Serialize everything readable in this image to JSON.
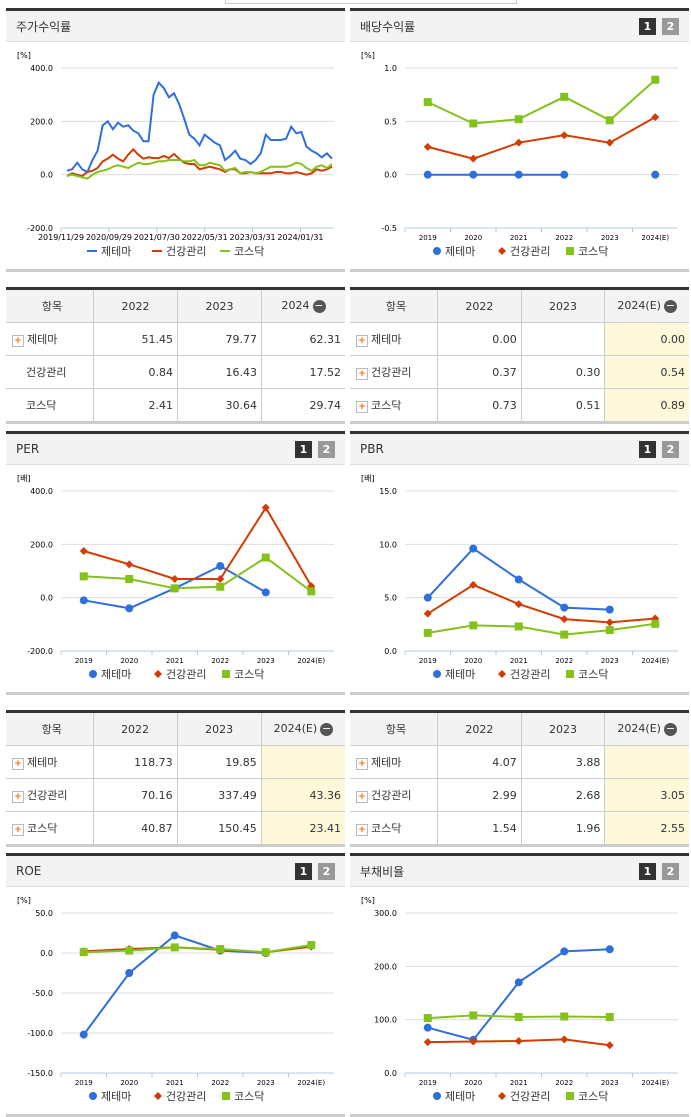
{
  "legend": [
    "제테마",
    "건강관리",
    "코스닥"
  ],
  "colors": {
    "s0": "#2f6fdc",
    "s1": "#d23c05",
    "s2": "#84c11a"
  },
  "pager": [
    "1",
    "2"
  ],
  "charts": [
    {
      "id": "stock",
      "title": "주가수익률",
      "unit": "[%]",
      "pager": false,
      "type": "line",
      "ylim": [
        -200,
        400
      ],
      "yticks": [
        "400.0",
        "200.0",
        "0.0",
        "-200.0"
      ],
      "yvals": [
        400,
        200,
        0,
        -200
      ],
      "xticks": [
        "2019/11/29",
        "2020/09/29",
        "2021/07/30",
        "2022/05/31",
        "2023/03/31",
        "2024/01/31"
      ],
      "series": [
        {
          "name": "제테마",
          "values": [
            15,
            20,
            45,
            20,
            10,
            55,
            90,
            185,
            200,
            170,
            195,
            180,
            185,
            165,
            155,
            125,
            125,
            300,
            345,
            325,
            290,
            305,
            265,
            210,
            150,
            135,
            110,
            150,
            135,
            120,
            110,
            55,
            70,
            90,
            60,
            55,
            40,
            55,
            80,
            150,
            130,
            130,
            130,
            135,
            180,
            155,
            160,
            105,
            90,
            80,
            65,
            80,
            60
          ]
        },
        {
          "name": "건강관리",
          "values": [
            -5,
            5,
            0,
            -5,
            10,
            15,
            25,
            50,
            60,
            75,
            60,
            50,
            75,
            95,
            75,
            60,
            65,
            62,
            62,
            70,
            62,
            78,
            60,
            45,
            40,
            40,
            20,
            25,
            30,
            25,
            20,
            10,
            20,
            20,
            5,
            5,
            10,
            5,
            5,
            5,
            5,
            10,
            10,
            5,
            5,
            10,
            5,
            0,
            5,
            20,
            15,
            20,
            30
          ]
        },
        {
          "name": "코스닥",
          "values": [
            -5,
            0,
            -5,
            -10,
            -15,
            0,
            10,
            15,
            20,
            30,
            35,
            30,
            25,
            35,
            45,
            40,
            40,
            45,
            50,
            50,
            55,
            55,
            55,
            50,
            50,
            55,
            35,
            35,
            45,
            40,
            35,
            15,
            20,
            25,
            5,
            10,
            10,
            5,
            10,
            20,
            30,
            30,
            30,
            30,
            35,
            45,
            40,
            25,
            15,
            30,
            35,
            25,
            40
          ]
        }
      ]
    },
    {
      "id": "div",
      "title": "배당수익률",
      "unit": "[%]",
      "pager": true,
      "type": "marker",
      "ylim": [
        -0.5,
        1.0
      ],
      "yticks": [
        "1.0",
        "0.5",
        "0.0",
        "-0.5"
      ],
      "yvals": [
        1,
        0.5,
        0,
        -0.5
      ],
      "xticks": [
        "2019",
        "2020",
        "2021",
        "2022",
        "2023",
        "2024(E)"
      ],
      "series": [
        {
          "name": "제테마",
          "values": [
            0,
            0,
            0,
            0,
            null,
            0
          ]
        },
        {
          "name": "건강관리",
          "values": [
            0.26,
            0.15,
            0.3,
            0.37,
            0.3,
            0.54
          ]
        },
        {
          "name": "코스닥",
          "values": [
            0.68,
            0.48,
            0.52,
            0.73,
            0.51,
            0.89
          ]
        }
      ]
    },
    {
      "id": "per",
      "title": "PER",
      "unit": "[배]",
      "pager": true,
      "type": "marker",
      "ylim": [
        -200,
        400
      ],
      "yticks": [
        "400.0",
        "200.0",
        "0.0",
        "-200.0"
      ],
      "yvals": [
        400,
        200,
        0,
        -200
      ],
      "xticks": [
        "2019",
        "2020",
        "2021",
        "2022",
        "2023",
        "2024(E)"
      ],
      "series": [
        {
          "name": "제테마",
          "values": [
            -10,
            -40,
            35,
            118.73,
            19.85,
            null
          ]
        },
        {
          "name": "건강관리",
          "values": [
            175,
            125,
            70,
            70.16,
            337.49,
            43.36
          ]
        },
        {
          "name": "코스닥",
          "values": [
            80,
            70,
            35,
            40.87,
            150.45,
            23.41
          ]
        }
      ]
    },
    {
      "id": "pbr",
      "title": "PBR",
      "unit": "[배]",
      "pager": true,
      "type": "marker",
      "ylim": [
        0,
        15
      ],
      "yticks": [
        "15.0",
        "10.0",
        "5.0",
        "0.0"
      ],
      "yvals": [
        15,
        10,
        5,
        0
      ],
      "xticks": [
        "2019",
        "2020",
        "2021",
        "2022",
        "2023",
        "2024(E)"
      ],
      "series": [
        {
          "name": "제테마",
          "values": [
            5.0,
            9.6,
            6.7,
            4.07,
            3.88,
            null
          ]
        },
        {
          "name": "건강관리",
          "values": [
            3.5,
            6.2,
            4.4,
            2.99,
            2.68,
            3.05
          ]
        },
        {
          "name": "코스닥",
          "values": [
            1.7,
            2.4,
            2.3,
            1.54,
            1.96,
            2.55
          ]
        }
      ]
    },
    {
      "id": "roe",
      "title": "ROE",
      "unit": "[%]",
      "pager": true,
      "type": "marker",
      "ylim": [
        -150,
        50
      ],
      "yticks": [
        "50.0",
        "0.0",
        "-50.0",
        "-100.0",
        "-150.0"
      ],
      "yvals": [
        50,
        0,
        -50,
        -100,
        -150
      ],
      "xticks": [
        "2019",
        "2020",
        "2021",
        "2022",
        "2023",
        "2024(E)"
      ],
      "series": [
        {
          "name": "제테마",
          "values": [
            -102,
            -25,
            22,
            3,
            0,
            null
          ]
        },
        {
          "name": "건강관리",
          "values": [
            2,
            5,
            7,
            4,
            1,
            8
          ]
        },
        {
          "name": "코스닥",
          "values": [
            1,
            3,
            7,
            5,
            1,
            10
          ]
        }
      ]
    },
    {
      "id": "debt",
      "title": "부채비율",
      "unit": "[%]",
      "pager": true,
      "type": "marker",
      "ylim": [
        0,
        300
      ],
      "yticks": [
        "300.0",
        "200.0",
        "100.0",
        "0.0"
      ],
      "yvals": [
        300,
        200,
        100,
        0
      ],
      "xticks": [
        "2019",
        "2020",
        "2021",
        "2022",
        "2023",
        "2024(E)"
      ],
      "series": [
        {
          "name": "제테마",
          "values": [
            85,
            62,
            170,
            228,
            232,
            null
          ]
        },
        {
          "name": "건강관리",
          "values": [
            58,
            59,
            60,
            63,
            52,
            null
          ]
        },
        {
          "name": "코스닥",
          "values": [
            103,
            108,
            105,
            106,
            105,
            null
          ]
        }
      ]
    }
  ],
  "tables": [
    {
      "header": [
        "항목",
        "2022",
        "2023",
        "2024"
      ],
      "rows": [
        [
          "제테마",
          "51.45",
          "79.77",
          "62.31"
        ],
        [
          "건강관리",
          "0.84",
          "16.43",
          "17.52"
        ],
        [
          "코스닥",
          "2.41",
          "30.64",
          "29.74"
        ]
      ],
      "plus": [
        true,
        false,
        false
      ],
      "hl": false
    },
    {
      "header": [
        "항목",
        "2022",
        "2023",
        "2024(E)"
      ],
      "rows": [
        [
          "제테마",
          "0.00",
          "",
          "0.00"
        ],
        [
          "건강관리",
          "0.37",
          "0.30",
          "0.54"
        ],
        [
          "코스닥",
          "0.73",
          "0.51",
          "0.89"
        ]
      ],
      "plus": [
        true,
        true,
        true
      ],
      "hl": true
    },
    {
      "header": [
        "항목",
        "2022",
        "2023",
        "2024(E)"
      ],
      "rows": [
        [
          "제테마",
          "118.73",
          "19.85",
          ""
        ],
        [
          "건강관리",
          "70.16",
          "337.49",
          "43.36"
        ],
        [
          "코스닥",
          "40.87",
          "150.45",
          "23.41"
        ]
      ],
      "plus": [
        true,
        true,
        true
      ],
      "hl": true
    },
    {
      "header": [
        "항목",
        "2022",
        "2023",
        "2024(E)"
      ],
      "rows": [
        [
          "제테마",
          "4.07",
          "3.88",
          ""
        ],
        [
          "건강관리",
          "2.99",
          "2.68",
          "3.05"
        ],
        [
          "코스닥",
          "1.54",
          "1.96",
          "2.55"
        ]
      ],
      "plus": [
        true,
        true,
        true
      ],
      "hl": true
    }
  ]
}
